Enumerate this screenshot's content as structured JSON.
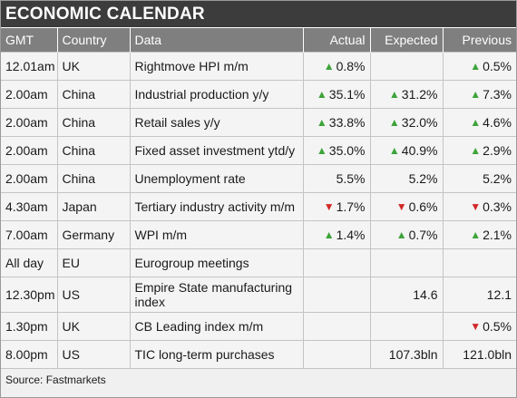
{
  "title": "ECONOMIC CALENDAR",
  "headers": {
    "gmt": "GMT",
    "country": "Country",
    "data": "Data",
    "actual": "Actual",
    "expected": "Expected",
    "previous": "Previous"
  },
  "colors": {
    "up": "#3da33a",
    "down": "#d12828",
    "header": "#7f7f7f",
    "title": "#3c3c3c"
  },
  "rows": [
    {
      "gmt": "12.01am",
      "country": "UK",
      "data": "Rightmove HPI m/m",
      "actual": "0.8%",
      "actual_dir": "up",
      "expected": "",
      "expected_dir": "",
      "previous": "0.5%",
      "previous_dir": "up"
    },
    {
      "gmt": "2.00am",
      "country": "China",
      "data": "Industrial production y/y",
      "actual": "35.1%",
      "actual_dir": "up",
      "expected": "31.2%",
      "expected_dir": "up",
      "previous": "7.3%",
      "previous_dir": "up"
    },
    {
      "gmt": "2.00am",
      "country": "China",
      "data": "Retail sales y/y",
      "actual": "33.8%",
      "actual_dir": "up",
      "expected": "32.0%",
      "expected_dir": "up",
      "previous": "4.6%",
      "previous_dir": "up"
    },
    {
      "gmt": "2.00am",
      "country": "China",
      "data": "Fixed asset investment ytd/y",
      "actual": "35.0%",
      "actual_dir": "up",
      "expected": "40.9%",
      "expected_dir": "up",
      "previous": "2.9%",
      "previous_dir": "up"
    },
    {
      "gmt": "2.00am",
      "country": "China",
      "data": "Unemployment rate",
      "actual": "5.5%",
      "actual_dir": "",
      "expected": "5.2%",
      "expected_dir": "",
      "previous": "5.2%",
      "previous_dir": ""
    },
    {
      "gmt": "4.30am",
      "country": "Japan",
      "data": "Tertiary industry activity m/m",
      "actual": "1.7%",
      "actual_dir": "down",
      "expected": "0.6%",
      "expected_dir": "down",
      "previous": "0.3%",
      "previous_dir": "down"
    },
    {
      "gmt": "7.00am",
      "country": "Germany",
      "data": "WPI m/m",
      "actual": "1.4%",
      "actual_dir": "up",
      "expected": "0.7%",
      "expected_dir": "up",
      "previous": "2.1%",
      "previous_dir": "up"
    },
    {
      "gmt": "All day",
      "country": "EU",
      "data": "Eurogroup meetings",
      "actual": "",
      "actual_dir": "",
      "expected": "",
      "expected_dir": "",
      "previous": "",
      "previous_dir": ""
    },
    {
      "gmt": "12.30pm",
      "country": "US",
      "data": "Empire State manufacturing index",
      "actual": "",
      "actual_dir": "",
      "expected": "14.6",
      "expected_dir": "",
      "previous": "12.1",
      "previous_dir": "",
      "tall": true
    },
    {
      "gmt": "1.30pm",
      "country": "UK",
      "data": "CB Leading index m/m",
      "actual": "",
      "actual_dir": "",
      "expected": "",
      "expected_dir": "",
      "previous": "0.5%",
      "previous_dir": "down"
    },
    {
      "gmt": "8.00pm",
      "country": "US",
      "data": "TIC long-term purchases",
      "actual": "",
      "actual_dir": "",
      "expected": "107.3bln",
      "expected_dir": "",
      "previous": "121.0bln",
      "previous_dir": ""
    }
  ],
  "source": "Source: Fastmarkets"
}
